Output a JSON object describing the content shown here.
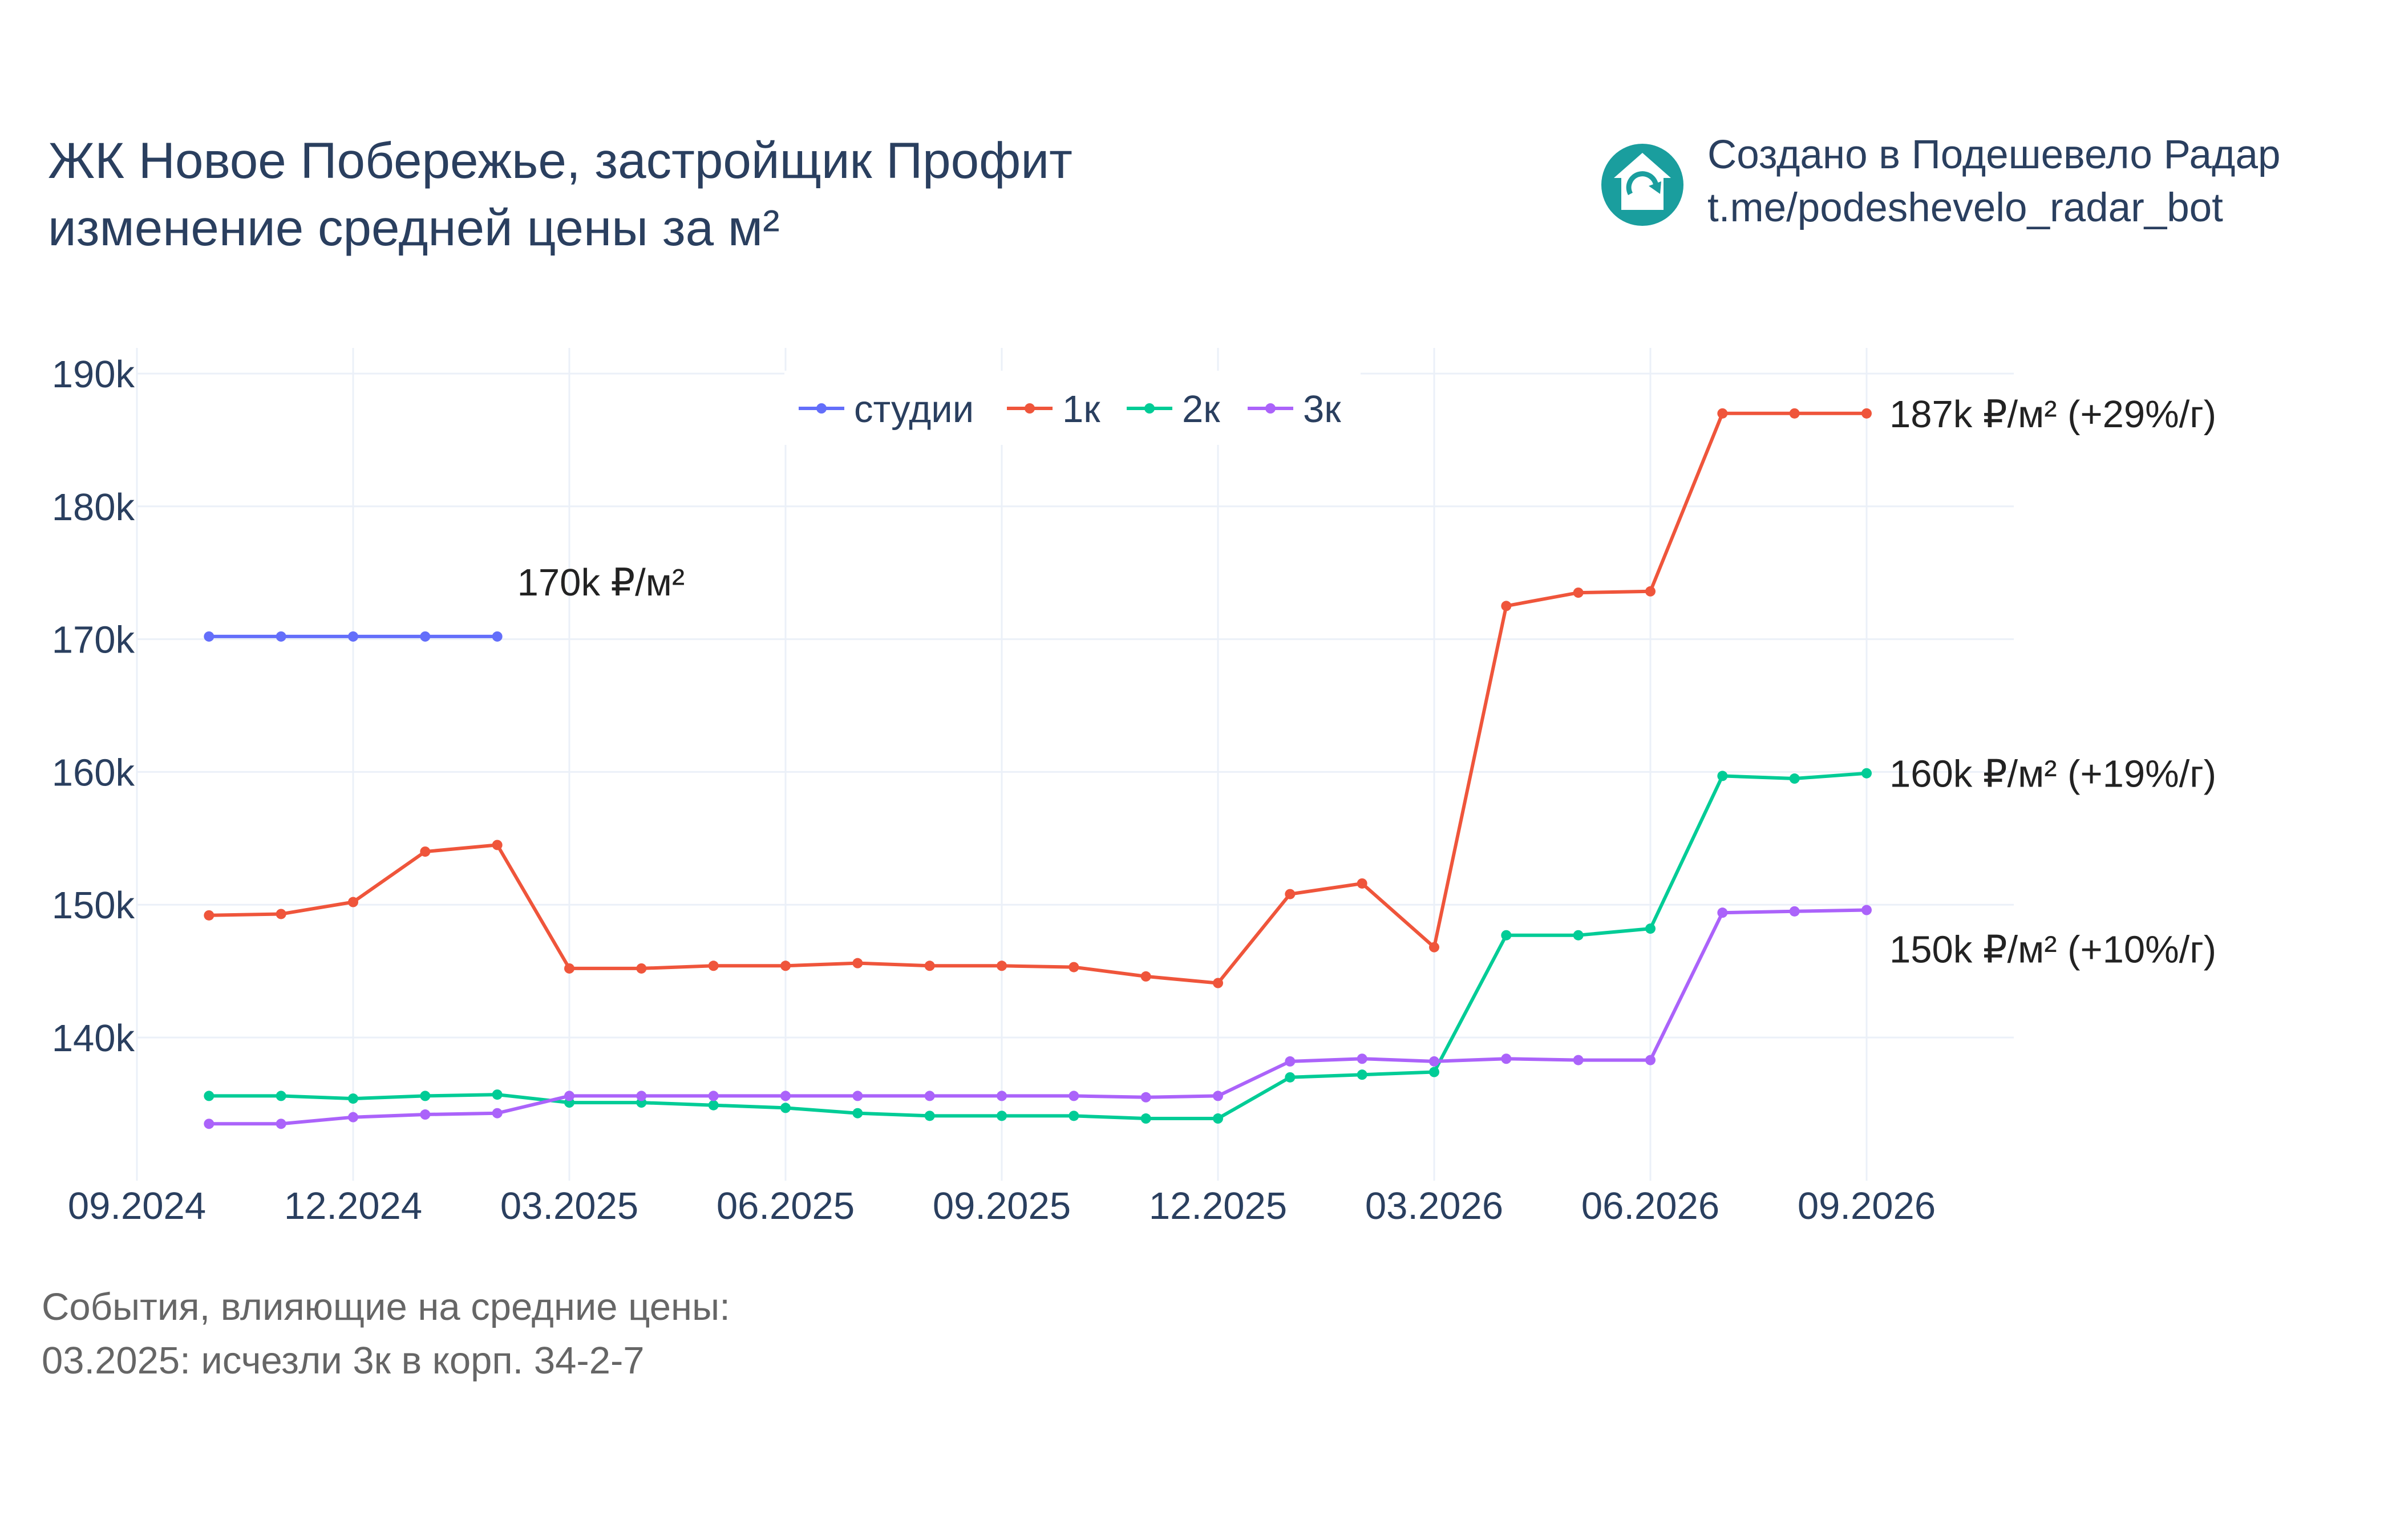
{
  "title": {
    "line1": "ЖК Новое Побережье, застройщик Профит",
    "line2": "изменение средней цены за м²"
  },
  "credit": {
    "line1": "Создано в Подешевело Радар",
    "line2": "t.me/podeshevelo_radar_bot",
    "icon": "house-logo-icon",
    "icon_color": "#1a9e9e"
  },
  "events": {
    "header": "События, влияющие на средние цены:",
    "items": [
      "03.2025: исчезли 3к в корп. 34-2-7"
    ]
  },
  "chart_data": {
    "type": "line",
    "x_format": "MM.YYYY",
    "x": [
      "10.2024",
      "11.2024",
      "12.2024",
      "01.2025",
      "02.2025",
      "03.2025",
      "04.2025",
      "05.2025",
      "06.2025",
      "07.2025",
      "08.2025",
      "09.2025",
      "10.2025",
      "11.2025",
      "12.2025",
      "01.2026",
      "02.2026",
      "03.2026",
      "04.2026",
      "05.2026",
      "06.2026",
      "07.2026",
      "08.2026",
      "09.2026"
    ],
    "xticks": [
      "09.2024",
      "12.2024",
      "03.2025",
      "06.2025",
      "09.2025",
      "12.2025",
      "03.2026",
      "06.2026",
      "09.2026"
    ],
    "xlim": [
      "09.2024",
      "09.2026"
    ],
    "ylim": [
      131000,
      191000
    ],
    "yticks": [
      140000,
      150000,
      160000,
      170000,
      180000,
      190000
    ],
    "ytick_labels": [
      "140k",
      "150k",
      "160k",
      "170k",
      "180k",
      "190k"
    ],
    "grid": true,
    "legend_position": "top-center",
    "series": [
      {
        "name": "студии",
        "color": "#636efa",
        "values": [
          170200,
          170200,
          170200,
          170200,
          170200,
          null,
          null,
          null,
          null,
          null,
          null,
          null,
          null,
          null,
          null,
          null,
          null,
          null,
          null,
          null,
          null,
          null,
          null,
          null
        ],
        "end_label": "170k ₽/м²"
      },
      {
        "name": "1к",
        "color": "#ef553b",
        "values": [
          149200,
          149300,
          150200,
          154000,
          154500,
          145200,
          145200,
          145400,
          145400,
          145600,
          145400,
          145400,
          145300,
          144600,
          144100,
          150800,
          151600,
          146800,
          172500,
          173500,
          173600,
          187000,
          187000,
          187000
        ],
        "end_label": "187k ₽/м² (+29%/г)"
      },
      {
        "name": "2к",
        "color": "#00cc96",
        "values": [
          135600,
          135600,
          135400,
          135600,
          135700,
          135100,
          135100,
          134900,
          134700,
          134300,
          134100,
          134100,
          134100,
          133900,
          133900,
          137000,
          137200,
          137400,
          147700,
          147700,
          148200,
          159700,
          159500,
          159900
        ],
        "end_label": "160k ₽/м² (+19%/г)"
      },
      {
        "name": "3к",
        "color": "#ab63fa",
        "values": [
          133500,
          133500,
          134000,
          134200,
          134300,
          135600,
          135600,
          135600,
          135600,
          135600,
          135600,
          135600,
          135600,
          135500,
          135600,
          138200,
          138400,
          138200,
          138400,
          138300,
          138300,
          149400,
          149500,
          149600
        ],
        "end_label": "150k ₽/м² (+10%/г)"
      }
    ]
  }
}
